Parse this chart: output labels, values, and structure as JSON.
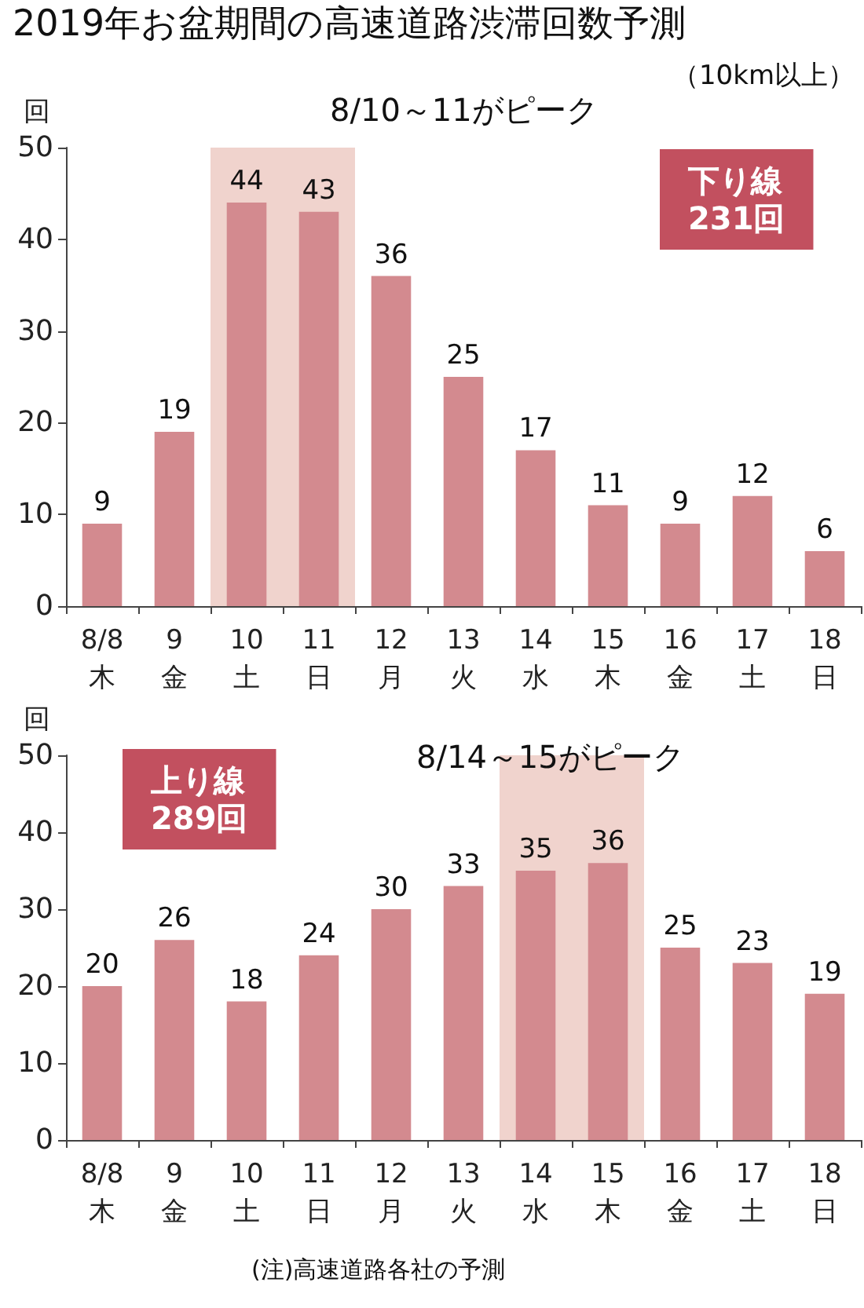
{
  "chart_data": [
    {
      "type": "bar",
      "title": "2019年お盆期間の高速道路渋滞回数予測",
      "subtitle": "（10km以上）",
      "ylabel": "回",
      "categories": [
        "8/8\n木",
        "9\n金",
        "10\n土",
        "11\n日",
        "12\n月",
        "13\n火",
        "14\n水",
        "15\n木",
        "16\n金",
        "17\n土",
        "18\n日"
      ],
      "values": [
        9,
        19,
        44,
        43,
        36,
        25,
        17,
        11,
        9,
        12,
        6
      ],
      "color": "#d38a8f",
      "ylim": [
        0,
        50
      ],
      "yticks": [
        0,
        10,
        20,
        30,
        40,
        50
      ],
      "grid": false,
      "data_labels": true,
      "bands": [
        {
          "axis": "x",
          "from": "10\n土",
          "to": "11\n日",
          "label": null,
          "color": "#f0d3cd"
        }
      ],
      "annotations": [
        "8/10～11がピーク",
        "下り線\n231回"
      ]
    },
    {
      "type": "bar",
      "ylabel": "回",
      "categories": [
        "8/8\n木",
        "9\n金",
        "10\n土",
        "11\n日",
        "12\n月",
        "13\n火",
        "14\n水",
        "15\n木",
        "16\n金",
        "17\n土",
        "18\n日"
      ],
      "values": [
        20,
        26,
        18,
        24,
        30,
        33,
        35,
        36,
        25,
        23,
        19
      ],
      "color": "#d38a8f",
      "ylim": [
        0,
        50
      ],
      "yticks": [
        0,
        10,
        20,
        30,
        40,
        50
      ],
      "grid": false,
      "data_labels": true,
      "bands": [
        {
          "axis": "x",
          "from": "14\n水",
          "to": "15\n木",
          "label": null,
          "color": "#f0d3cd"
        }
      ],
      "annotations": [
        "上り線\n289回",
        "8/14～15がピーク",
        "(注)高速道路各社の予測"
      ]
    }
  ]
}
